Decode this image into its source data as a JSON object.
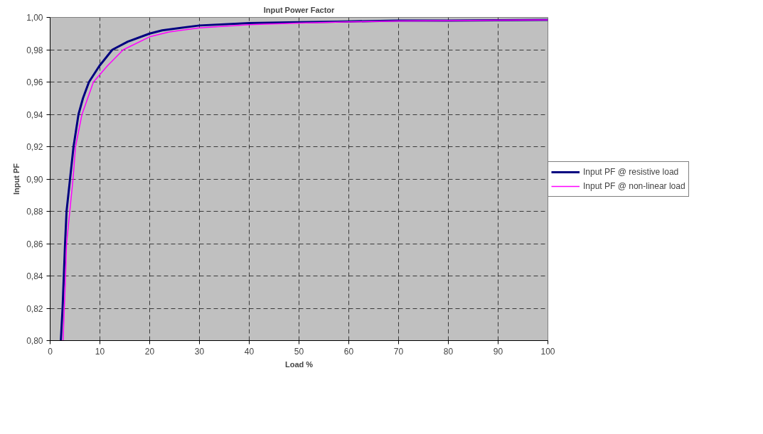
{
  "chart_data": {
    "type": "line",
    "title": "Input Power Factor",
    "xlabel": "Load %",
    "ylabel": "Input PF",
    "xlim": [
      0,
      100
    ],
    "xticks": [
      0,
      10,
      20,
      30,
      40,
      50,
      60,
      70,
      80,
      90,
      100
    ],
    "ylim": [
      0.8,
      1.0
    ],
    "yticks": [
      {
        "value": 0.8,
        "label": "0,80"
      },
      {
        "value": 0.82,
        "label": "0,82"
      },
      {
        "value": 0.84,
        "label": "0,84"
      },
      {
        "value": 0.86,
        "label": "0,86"
      },
      {
        "value": 0.88,
        "label": "0,88"
      },
      {
        "value": 0.9,
        "label": "0,90"
      },
      {
        "value": 0.92,
        "label": "0,92"
      },
      {
        "value": 0.94,
        "label": "0,94"
      },
      {
        "value": 0.96,
        "label": "0,96"
      },
      {
        "value": 0.98,
        "label": "0,98"
      },
      {
        "value": 1.0,
        "label": "1,00"
      }
    ],
    "grid": true,
    "legend": "right",
    "line_style": "solid",
    "marker": "none",
    "series": [
      {
        "name": "Input PF @ resistive load",
        "color": "#000080",
        "x": [
          2.15,
          2.5,
          2.75,
          3.0,
          3.3,
          4.0,
          4.7,
          5.7,
          6.6,
          7.8,
          9.9,
          12.5,
          15.6,
          20,
          22.5,
          30,
          40,
          50,
          60,
          70,
          80,
          100
        ],
        "values": [
          0.8,
          0.82,
          0.84,
          0.86,
          0.88,
          0.9,
          0.92,
          0.94,
          0.95,
          0.96,
          0.97,
          0.98,
          0.985,
          0.99,
          0.992,
          0.995,
          0.9965,
          0.997,
          0.9975,
          0.998,
          0.998,
          0.9985
        ]
      },
      {
        "name": "Input PF @ non-linear load",
        "color": "#ff00ff",
        "x": [
          2.6,
          2.85,
          3.1,
          3.3,
          3.95,
          4.6,
          5.1,
          6.4,
          8.7,
          11.5,
          14.7,
          20,
          23.9,
          30,
          40,
          50,
          60,
          70,
          80,
          100
        ],
        "values": [
          0.8,
          0.82,
          0.84,
          0.86,
          0.88,
          0.9,
          0.92,
          0.94,
          0.96,
          0.97,
          0.98,
          0.988,
          0.991,
          0.9935,
          0.9955,
          0.9965,
          0.9972,
          0.9978,
          0.998,
          0.9985
        ]
      }
    ]
  }
}
